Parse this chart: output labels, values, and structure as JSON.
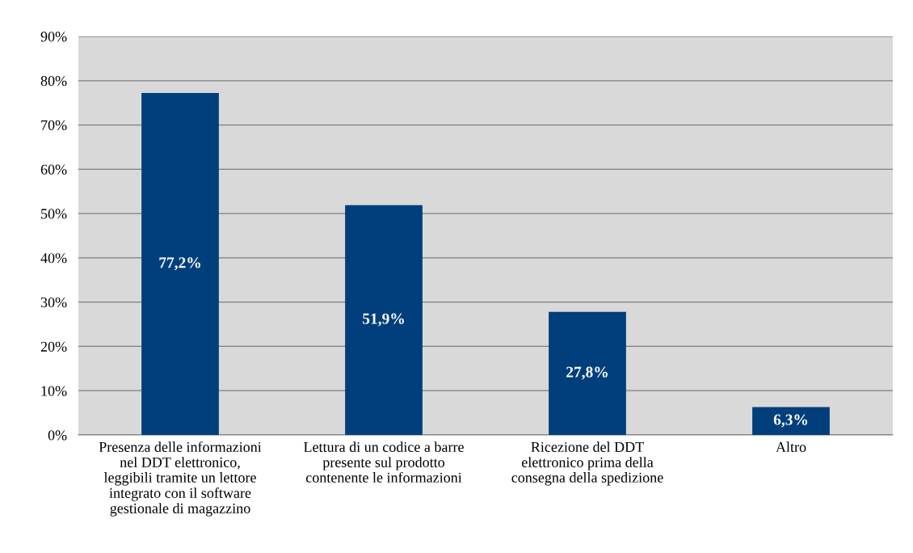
{
  "chart_data": {
    "type": "bar",
    "categories": [
      "Presenza delle informazioni\nnel DDT elettronico,\nleggibili tramite un lettore\nintegrato con il software\ngestionale di magazzino",
      "Lettura di un codice a barre\npresente sul prodotto\ncontenente le informazioni",
      "Ricezione del DDT\nelettronico prima della\nconsegna della spedizione",
      "Altro"
    ],
    "values": [
      77.2,
      51.9,
      27.8,
      6.3
    ],
    "value_labels": [
      "77,2%",
      "51,9%",
      "27,8%",
      "6,3%"
    ],
    "color": "#003f7b",
    "ylim": [
      0,
      90
    ],
    "yticks": [
      {
        "value": 0,
        "label": "0%"
      },
      {
        "value": 10,
        "label": "10%"
      },
      {
        "value": 20,
        "label": "20%"
      },
      {
        "value": 30,
        "label": "30%"
      },
      {
        "value": 40,
        "label": "40%"
      },
      {
        "value": 50,
        "label": "50%"
      },
      {
        "value": 60,
        "label": "60%"
      },
      {
        "value": 70,
        "label": "70%"
      },
      {
        "value": 80,
        "label": "80%"
      },
      {
        "value": 90,
        "label": "90%"
      }
    ],
    "grid": "y"
  }
}
